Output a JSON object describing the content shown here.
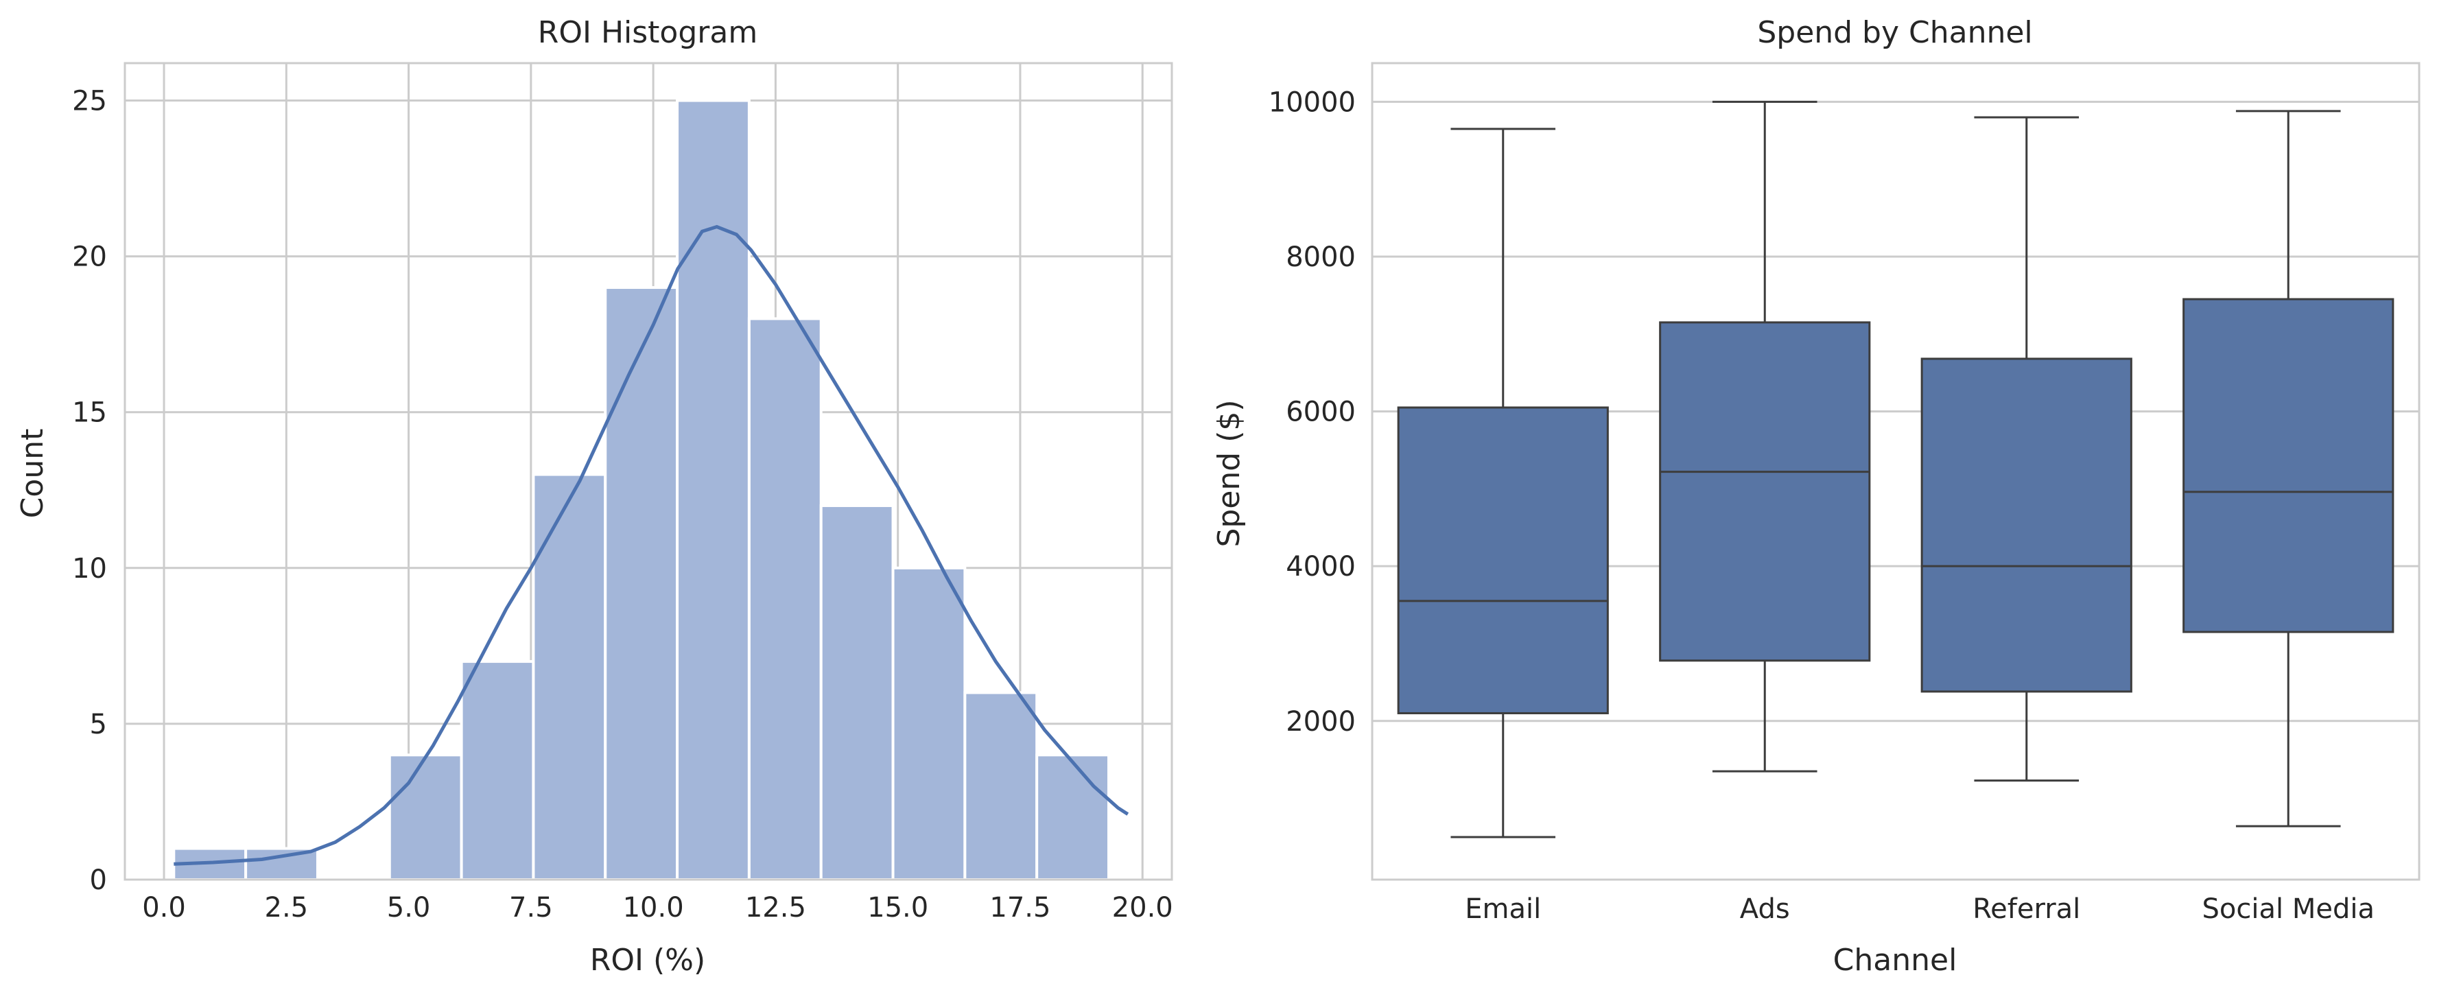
{
  "chart_data": [
    {
      "type": "bar",
      "subtype": "histogram_with_kde",
      "title": "ROI Histogram",
      "xlabel": "ROI (%)",
      "ylabel": "Count",
      "xlim": [
        -0.8,
        20.6
      ],
      "ylim": [
        0,
        26.2
      ],
      "xticks": [
        0,
        2.5,
        5,
        7.5,
        10,
        12.5,
        15,
        17.5,
        20
      ],
      "xtick_labels": [
        "0.0",
        "2.5",
        "5.0",
        "7.5",
        "10.0",
        "12.5",
        "15.0",
        "17.5",
        "20.0"
      ],
      "yticks": [
        0,
        5,
        10,
        15,
        20,
        25
      ],
      "ytick_labels": [
        "0",
        "5",
        "10",
        "15",
        "20",
        "25"
      ],
      "grid": true,
      "bar_color": "#a3b6d9",
      "kde_color": "#4c72b0",
      "bins": [
        {
          "x0": 0.2,
          "x1": 1.67,
          "count": 1
        },
        {
          "x0": 1.67,
          "x1": 3.14,
          "count": 1
        },
        {
          "x0": 3.14,
          "x1": 4.61,
          "count": 0
        },
        {
          "x0": 4.61,
          "x1": 6.08,
          "count": 4
        },
        {
          "x0": 6.08,
          "x1": 7.55,
          "count": 7
        },
        {
          "x0": 7.55,
          "x1": 9.02,
          "count": 13
        },
        {
          "x0": 9.02,
          "x1": 10.49,
          "count": 19
        },
        {
          "x0": 10.49,
          "x1": 11.96,
          "count": 25
        },
        {
          "x0": 11.96,
          "x1": 13.43,
          "count": 18
        },
        {
          "x0": 13.43,
          "x1": 14.9,
          "count": 12
        },
        {
          "x0": 14.9,
          "x1": 16.37,
          "count": 10
        },
        {
          "x0": 16.37,
          "x1": 17.84,
          "count": 6
        },
        {
          "x0": 17.84,
          "x1": 19.31,
          "count": 4
        }
      ],
      "kde": [
        [
          0.2,
          0.5
        ],
        [
          1.0,
          0.55
        ],
        [
          2.0,
          0.65
        ],
        [
          3.0,
          0.9
        ],
        [
          3.5,
          1.2
        ],
        [
          4.0,
          1.7
        ],
        [
          4.5,
          2.3
        ],
        [
          5.0,
          3.1
        ],
        [
          5.5,
          4.3
        ],
        [
          6.0,
          5.7
        ],
        [
          6.5,
          7.2
        ],
        [
          7.0,
          8.7
        ],
        [
          7.5,
          10.0
        ],
        [
          8.0,
          11.4
        ],
        [
          8.5,
          12.8
        ],
        [
          9.0,
          14.5
        ],
        [
          9.5,
          16.2
        ],
        [
          10.0,
          17.8
        ],
        [
          10.5,
          19.6
        ],
        [
          11.0,
          20.8
        ],
        [
          11.3,
          20.95
        ],
        [
          11.7,
          20.7
        ],
        [
          12.0,
          20.2
        ],
        [
          12.5,
          19.1
        ],
        [
          13.0,
          17.8
        ],
        [
          13.5,
          16.5
        ],
        [
          14.0,
          15.2
        ],
        [
          14.5,
          13.9
        ],
        [
          15.0,
          12.6
        ],
        [
          15.5,
          11.2
        ],
        [
          16.0,
          9.7
        ],
        [
          16.5,
          8.3
        ],
        [
          17.0,
          7.0
        ],
        [
          17.5,
          5.9
        ],
        [
          18.0,
          4.8
        ],
        [
          18.5,
          3.9
        ],
        [
          19.0,
          3.0
        ],
        [
          19.5,
          2.3
        ],
        [
          19.7,
          2.1
        ]
      ]
    },
    {
      "type": "box",
      "title": "Spend by Channel",
      "xlabel": "Channel",
      "ylabel": "Spend ($)",
      "categories": [
        "Email",
        "Ads",
        "Referral",
        "Social Media"
      ],
      "ylim": [
        -50,
        10500
      ],
      "yticks": [
        2000,
        4000,
        6000,
        8000,
        10000
      ],
      "ytick_labels": [
        "2000",
        "4000",
        "6000",
        "8000",
        "10000"
      ],
      "grid": true,
      "box_color": "#5875a4",
      "line_color": "#3d3d3d",
      "boxes": [
        {
          "min": 500,
          "q1": 2100,
          "median": 3550,
          "q3": 6050,
          "max": 9650
        },
        {
          "min": 1350,
          "q1": 2780,
          "median": 5220,
          "q3": 7150,
          "max": 10000
        },
        {
          "min": 1230,
          "q1": 2380,
          "median": 4000,
          "q3": 6680,
          "max": 9800
        },
        {
          "min": 640,
          "q1": 3150,
          "median": 4960,
          "q3": 7450,
          "max": 9880
        }
      ]
    }
  ]
}
